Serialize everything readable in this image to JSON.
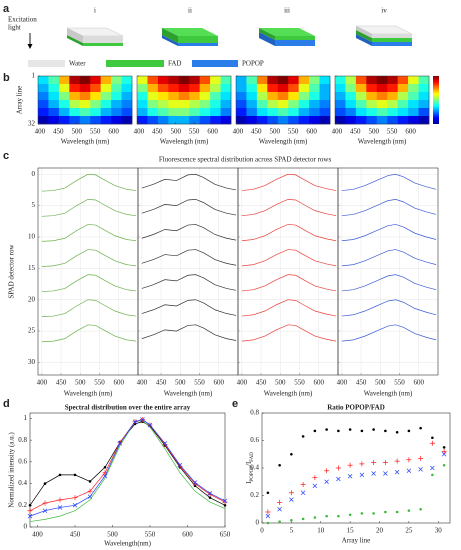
{
  "panel_labels": [
    "a",
    "b",
    "c",
    "d",
    "e"
  ],
  "panel_a": {
    "excitation_label": [
      "Excitation",
      "light"
    ],
    "columns": [
      "i",
      "ii",
      "iii",
      "iv"
    ],
    "legend": [
      {
        "name": "Water",
        "color": "#e6e6e6"
      },
      {
        "name": "FAD",
        "color": "#3ec93e"
      },
      {
        "name": "POPOP",
        "color": "#2b7de9"
      }
    ]
  },
  "chart_data": [
    {
      "type": "heatmap",
      "xlabel": "Wavelength (nm)",
      "ylabel": "Array line",
      "xlim": [
        395,
        650
      ],
      "xticks": [
        400,
        450,
        500,
        550,
        600
      ],
      "ylim": [
        1,
        32
      ],
      "yticks": [
        1,
        32
      ],
      "y_inverted": true,
      "zlim": [
        0,
        1
      ],
      "panels": [
        {
          "z": [
            [
              0.35,
              0.45,
              0.7,
              0.95,
              1,
              0.9,
              0.7,
              0.5,
              0.4
            ],
            [
              0.3,
              0.4,
              0.6,
              0.85,
              0.9,
              0.8,
              0.6,
              0.45,
              0.35
            ],
            [
              0.25,
              0.35,
              0.5,
              0.7,
              0.75,
              0.65,
              0.5,
              0.4,
              0.3
            ],
            [
              0.2,
              0.3,
              0.4,
              0.55,
              0.6,
              0.5,
              0.4,
              0.3,
              0.25
            ],
            [
              0.15,
              0.2,
              0.3,
              0.4,
              0.45,
              0.4,
              0.3,
              0.25,
              0.2
            ],
            [
              0.05,
              0.1,
              0.15,
              0.2,
              0.25,
              0.2,
              0.15,
              0.1,
              0.05
            ]
          ]
        },
        {
          "z": [
            [
              0.6,
              0.8,
              0.9,
              0.95,
              1,
              0.95,
              0.8,
              0.6,
              0.45
            ],
            [
              0.5,
              0.7,
              0.8,
              0.85,
              0.9,
              0.85,
              0.7,
              0.55,
              0.4
            ],
            [
              0.4,
              0.6,
              0.65,
              0.7,
              0.75,
              0.7,
              0.6,
              0.45,
              0.35
            ],
            [
              0.35,
              0.5,
              0.55,
              0.6,
              0.6,
              0.55,
              0.5,
              0.4,
              0.3
            ],
            [
              0.3,
              0.4,
              0.45,
              0.5,
              0.5,
              0.45,
              0.4,
              0.35,
              0.25
            ],
            [
              0.15,
              0.2,
              0.25,
              0.3,
              0.3,
              0.25,
              0.2,
              0.15,
              0.1
            ]
          ]
        },
        {
          "z": [
            [
              0.3,
              0.45,
              0.75,
              0.95,
              1,
              0.9,
              0.7,
              0.5,
              0.35
            ],
            [
              0.3,
              0.4,
              0.65,
              0.85,
              0.9,
              0.8,
              0.6,
              0.45,
              0.3
            ],
            [
              0.25,
              0.35,
              0.55,
              0.7,
              0.75,
              0.65,
              0.5,
              0.4,
              0.3
            ],
            [
              0.2,
              0.3,
              0.45,
              0.55,
              0.6,
              0.5,
              0.4,
              0.3,
              0.25
            ],
            [
              0.15,
              0.25,
              0.35,
              0.4,
              0.45,
              0.4,
              0.3,
              0.25,
              0.2
            ],
            [
              0.05,
              0.1,
              0.15,
              0.2,
              0.25,
              0.2,
              0.15,
              0.1,
              0.05
            ]
          ]
        },
        {
          "z": [
            [
              0.4,
              0.55,
              0.8,
              0.95,
              1,
              0.95,
              0.8,
              0.6,
              0.45
            ],
            [
              0.35,
              0.5,
              0.7,
              0.85,
              0.9,
              0.85,
              0.7,
              0.5,
              0.4
            ],
            [
              0.3,
              0.4,
              0.55,
              0.7,
              0.75,
              0.7,
              0.55,
              0.45,
              0.35
            ],
            [
              0.25,
              0.35,
              0.45,
              0.55,
              0.6,
              0.55,
              0.45,
              0.35,
              0.3
            ],
            [
              0.2,
              0.25,
              0.35,
              0.4,
              0.45,
              0.4,
              0.35,
              0.3,
              0.2
            ],
            [
              0.05,
              0.1,
              0.15,
              0.2,
              0.25,
              0.2,
              0.15,
              0.1,
              0.05
            ]
          ]
        }
      ]
    },
    {
      "type": "line",
      "title": "Fluorescence spectral distribution across SPAD detector rows",
      "xlabel": "Wavelength (nm)",
      "ylabel": "SPAD detector row",
      "xlim": [
        390,
        650
      ],
      "xticks": [
        400,
        450,
        500,
        550,
        600
      ],
      "ylim": [
        -1,
        32
      ],
      "yticks": [
        0,
        5,
        10,
        15,
        20,
        25,
        30
      ],
      "y_inverted": true,
      "grid": true,
      "x": [
        400,
        430,
        460,
        490,
        520,
        540,
        560,
        590,
        620,
        645
      ],
      "panels": [
        {
          "color": "#6ab04c",
          "series": [
            {
              "values": [
                2.7,
                2.6,
                2.2,
                1,
                0,
                0.1,
                0.8,
                1.8,
                2.4,
                2.6
              ]
            },
            {
              "values": [
                6.7,
                6.6,
                6.2,
                5,
                4,
                4.1,
                4.8,
                5.8,
                6.4,
                6.6
              ]
            },
            {
              "values": [
                10.7,
                10.6,
                10.2,
                9,
                8,
                8.1,
                8.8,
                9.8,
                10.4,
                10.6
              ]
            },
            {
              "values": [
                14.7,
                14.6,
                14.2,
                13,
                12,
                12.1,
                12.8,
                13.8,
                14.4,
                14.6
              ]
            },
            {
              "values": [
                18.7,
                18.6,
                18.2,
                17,
                16,
                16.1,
                16.8,
                17.8,
                18.4,
                18.6
              ]
            },
            {
              "values": [
                22.7,
                22.6,
                22.2,
                21,
                20,
                20.1,
                20.8,
                21.8,
                22.4,
                22.6
              ]
            },
            {
              "values": [
                26.7,
                26.6,
                26.2,
                25,
                24,
                24.1,
                24.8,
                25.8,
                26.4,
                26.6
              ]
            }
          ]
        },
        {
          "color": "#333333",
          "series": [
            {
              "values": [
                2.2,
                1.6,
                0.8,
                1,
                0.1,
                0,
                0.5,
                1.6,
                2.2,
                2.5
              ]
            },
            {
              "values": [
                6.2,
                5.6,
                4.8,
                5,
                4.1,
                4,
                4.5,
                5.6,
                6.2,
                6.5
              ]
            },
            {
              "values": [
                10.2,
                9.6,
                8.8,
                9,
                8.1,
                8,
                8.5,
                9.6,
                10.2,
                10.5
              ]
            },
            {
              "values": [
                14.2,
                13.6,
                12.8,
                13,
                12.1,
                12,
                12.5,
                13.6,
                14.2,
                14.5
              ]
            },
            {
              "values": [
                18.2,
                17.6,
                16.8,
                17,
                16.1,
                16,
                16.5,
                17.6,
                18.2,
                18.5
              ]
            },
            {
              "values": [
                22.2,
                21.6,
                20.8,
                21,
                20.1,
                20,
                20.5,
                21.6,
                22.2,
                22.5
              ]
            },
            {
              "values": [
                26.2,
                25.6,
                24.8,
                25,
                24.1,
                24,
                24.5,
                25.6,
                26.2,
                26.5
              ]
            }
          ]
        },
        {
          "color": "#e8413a",
          "series": [
            {
              "values": [
                2.6,
                2.4,
                1.8,
                0.8,
                0,
                0.1,
                0.8,
                1.8,
                2.3,
                2.6
              ]
            },
            {
              "values": [
                6.6,
                6.4,
                5.8,
                4.8,
                4,
                4.1,
                4.8,
                5.8,
                6.3,
                6.6
              ]
            },
            {
              "values": [
                10.6,
                10.4,
                9.8,
                8.8,
                8,
                8.1,
                8.8,
                9.8,
                10.3,
                10.6
              ]
            },
            {
              "values": [
                14.6,
                14.4,
                13.8,
                12.8,
                12,
                12.1,
                12.8,
                13.8,
                14.3,
                14.6
              ]
            },
            {
              "values": [
                18.6,
                18.4,
                17.8,
                16.8,
                16,
                16.1,
                16.8,
                17.8,
                18.3,
                18.6
              ]
            },
            {
              "values": [
                22.6,
                22.4,
                21.8,
                20.8,
                20,
                20.1,
                20.8,
                21.8,
                22.3,
                22.6
              ]
            },
            {
              "values": [
                26.6,
                26.4,
                25.8,
                24.8,
                24,
                24.1,
                24.8,
                25.8,
                26.3,
                26.6
              ]
            }
          ]
        },
        {
          "color": "#3b5bd6",
          "series": [
            {
              "values": [
                2.6,
                2.4,
                1.8,
                1,
                0.2,
                0,
                0.4,
                1.4,
                2,
                2.4
              ]
            },
            {
              "values": [
                6.6,
                6.4,
                5.8,
                5,
                4.2,
                4,
                4.4,
                5.4,
                6,
                6.4
              ]
            },
            {
              "values": [
                10.6,
                10.4,
                9.8,
                9,
                8.2,
                8,
                8.4,
                9.4,
                10,
                10.4
              ]
            },
            {
              "values": [
                14.6,
                14.4,
                13.8,
                13,
                12.2,
                12,
                12.4,
                13.4,
                14,
                14.4
              ]
            },
            {
              "values": [
                18.6,
                18.4,
                17.8,
                17,
                16.2,
                16,
                16.4,
                17.4,
                18,
                18.4
              ]
            },
            {
              "values": [
                22.6,
                22.4,
                21.8,
                21,
                20.2,
                20,
                20.4,
                21.4,
                22,
                22.4
              ]
            },
            {
              "values": [
                26.6,
                26.4,
                25.8,
                25,
                24.2,
                24,
                24.4,
                25.4,
                26,
                26.4
              ]
            }
          ]
        }
      ]
    },
    {
      "type": "line",
      "title": "Spectral distribution over the entire array",
      "xlabel": "Wavelength(nm)",
      "ylabel": "Normalized intensity (a.u.)",
      "xlim": [
        390,
        650
      ],
      "xticks": [
        400,
        450,
        500,
        550,
        600,
        650
      ],
      "ylim": [
        0,
        1.05
      ],
      "yticks": [
        0,
        0.2,
        0.4,
        0.6,
        0.8,
        1
      ],
      "x": [
        390,
        410,
        430,
        450,
        470,
        490,
        510,
        530,
        540,
        550,
        570,
        590,
        610,
        630,
        650
      ],
      "series": [
        {
          "color": "#000000",
          "marker": "dot",
          "values": [
            0.2,
            0.4,
            0.48,
            0.48,
            0.42,
            0.55,
            0.78,
            0.95,
            0.97,
            0.93,
            0.75,
            0.55,
            0.38,
            0.27,
            0.2
          ]
        },
        {
          "color": "#3fb93f",
          "marker": null,
          "values": [
            0.05,
            0.07,
            0.1,
            0.15,
            0.25,
            0.45,
            0.75,
            0.97,
            0.98,
            0.92,
            0.72,
            0.5,
            0.33,
            0.23,
            0.17
          ]
        },
        {
          "color": "#ff2020",
          "marker": "plus",
          "values": [
            0.15,
            0.22,
            0.25,
            0.27,
            0.33,
            0.5,
            0.78,
            0.97,
            0.99,
            0.94,
            0.76,
            0.56,
            0.4,
            0.3,
            0.23
          ]
        },
        {
          "color": "#2040ff",
          "marker": "cross",
          "values": [
            0.1,
            0.15,
            0.18,
            0.2,
            0.28,
            0.47,
            0.77,
            0.97,
            0.99,
            0.94,
            0.77,
            0.57,
            0.41,
            0.31,
            0.24
          ]
        }
      ]
    },
    {
      "type": "scatter",
      "title": "Ratio POPOP/FAD",
      "xlabel": "Array line",
      "ylabel": [
        {
          "text": "I"
        },
        {
          "text": "POPOP",
          "sub": true
        },
        {
          "text": "/I"
        },
        {
          "text": "FAD",
          "sub": true
        }
      ],
      "xlim": [
        0,
        32
      ],
      "xticks": [
        0,
        5,
        10,
        15,
        20,
        25,
        30
      ],
      "ylim": [
        0,
        0.8
      ],
      "yticks": [
        0,
        0.2,
        0.4,
        0.6,
        0.8
      ],
      "x": [
        1,
        3,
        5,
        7,
        9,
        11,
        13,
        15,
        17,
        19,
        21,
        23,
        25,
        27,
        29,
        31
      ],
      "series": [
        {
          "color": "#000000",
          "marker": "dot",
          "values": [
            0.22,
            0.42,
            0.5,
            0.63,
            0.67,
            0.68,
            0.67,
            0.68,
            0.67,
            0.68,
            0.67,
            0.66,
            0.67,
            0.69,
            0.62,
            0.55
          ]
        },
        {
          "color": "#ff2020",
          "marker": "plus",
          "values": [
            0.08,
            0.15,
            0.22,
            0.28,
            0.33,
            0.38,
            0.4,
            0.42,
            0.43,
            0.44,
            0.44,
            0.45,
            0.46,
            0.47,
            0.58,
            0.52
          ]
        },
        {
          "color": "#2040ff",
          "marker": "cross",
          "values": [
            0.05,
            0.1,
            0.17,
            0.22,
            0.27,
            0.3,
            0.32,
            0.34,
            0.35,
            0.36,
            0.36,
            0.37,
            0.38,
            0.39,
            0.4,
            0.5
          ]
        },
        {
          "color": "#3fb93f",
          "marker": "dot",
          "values": [
            0,
            0.01,
            0.02,
            0.03,
            0.04,
            0.05,
            0.05,
            0.06,
            0.07,
            0.07,
            0.08,
            0.08,
            0.09,
            0.1,
            0.35,
            0.42
          ]
        }
      ]
    }
  ]
}
